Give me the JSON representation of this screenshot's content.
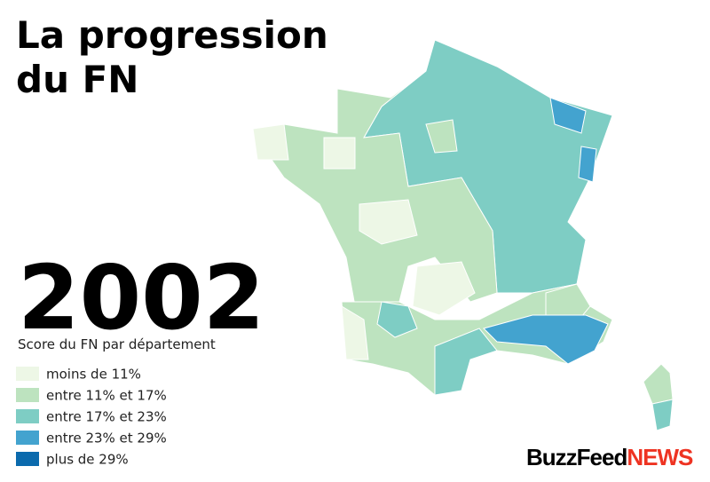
{
  "title": [
    "La progression",
    "du FN"
  ],
  "year": "2002",
  "subtitle": "Score du FN par département",
  "legend": [
    {
      "label": "moins de 11%",
      "color": "#edf7e6"
    },
    {
      "label": "entre 11% et 17%",
      "color": "#bde3bf"
    },
    {
      "label": "entre 17% et 23%",
      "color": "#7ecdc4"
    },
    {
      "label": "entre 23% et 29%",
      "color": "#43a3cf"
    },
    {
      "label": "plus de 29%",
      "color": "#0b6aad"
    }
  ],
  "logo": {
    "brand": "BuzzFeed",
    "suffix": "NEWS"
  }
}
